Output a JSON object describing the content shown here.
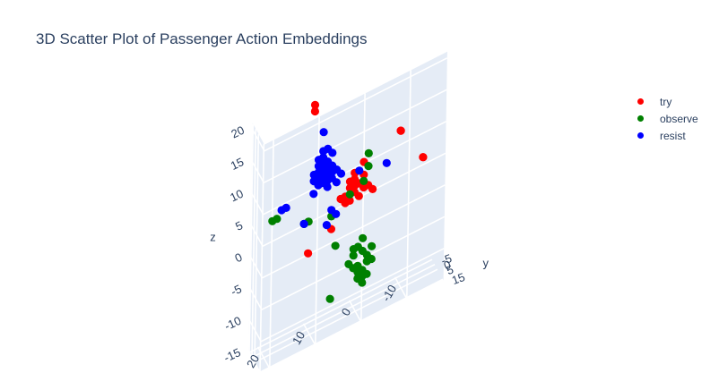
{
  "chart_data": {
    "type": "scatter",
    "title": "3D Scatter Plot of Passenger Action Embeddings",
    "axes": {
      "x": {
        "label": "",
        "ticks": [
          20,
          10,
          0,
          -10
        ],
        "range": [
          22,
          -18
        ]
      },
      "y": {
        "label": "y",
        "ticks": [
          -5,
          0,
          5,
          15
        ],
        "range": [
          -6,
          16
        ]
      },
      "z": {
        "label": "z",
        "ticks": [
          20,
          15,
          10,
          5,
          0,
          -5,
          -10,
          -15
        ],
        "range": [
          -15,
          21
        ]
      }
    },
    "legend_position": "top-right",
    "series": [
      {
        "name": "try",
        "color": "#ff0000",
        "points": [
          [
            9,
            0,
            20
          ],
          [
            9,
            0,
            19
          ],
          [
            0,
            0,
            5
          ],
          [
            0,
            0,
            4
          ],
          [
            1,
            0,
            4
          ],
          [
            -1,
            0,
            4
          ],
          [
            0,
            0,
            3
          ],
          [
            2,
            0,
            3
          ],
          [
            -2,
            0,
            3
          ],
          [
            1,
            0,
            2
          ],
          [
            -1,
            0,
            2
          ],
          [
            -3,
            0,
            3
          ],
          [
            3,
            0,
            3
          ],
          [
            0,
            0,
            6
          ],
          [
            -2,
            0,
            5
          ],
          [
            2,
            0,
            2
          ],
          [
            -4,
            0,
            2
          ],
          [
            1,
            0,
            5
          ],
          [
            -10,
            0,
            9
          ],
          [
            -10,
            0,
            9
          ],
          [
            -15,
            0,
            3
          ],
          [
            -15,
            0,
            3
          ],
          [
            10,
            0,
            -3
          ],
          [
            5,
            0,
            -1
          ],
          [
            3,
            0,
            3
          ],
          [
            -2,
            0,
            7
          ]
        ]
      },
      {
        "name": "observe",
        "color": "#008000",
        "points": [
          [
            18,
            0,
            5
          ],
          [
            17,
            0,
            5
          ],
          [
            11,
            0,
            2
          ],
          [
            10,
            0,
            2
          ],
          [
            6,
            0,
            9
          ],
          [
            -3,
            0,
            8
          ],
          [
            -3,
            0,
            6
          ],
          [
            -2,
            0,
            4
          ],
          [
            1,
            0,
            3
          ],
          [
            5,
            0,
            1
          ],
          [
            -1,
            0,
            -6
          ],
          [
            0,
            0,
            -7
          ],
          [
            -2,
            0,
            -7
          ],
          [
            1,
            0,
            -8
          ],
          [
            -3,
            0,
            -8
          ],
          [
            0,
            0,
            -9
          ],
          [
            -1,
            0,
            -10
          ],
          [
            -2,
            0,
            -10
          ],
          [
            -4,
            0,
            -9
          ],
          [
            -3,
            0,
            -11
          ],
          [
            -1,
            0,
            -11
          ],
          [
            -2,
            0,
            -12
          ],
          [
            0,
            0,
            -6
          ],
          [
            -4,
            0,
            -7
          ],
          [
            -2,
            0,
            -5
          ],
          [
            -1,
            0,
            -9
          ],
          [
            -3,
            0,
            -9
          ],
          [
            -2,
            0,
            -11
          ],
          [
            4,
            0,
            -4
          ],
          [
            5,
            0,
            -12
          ]
        ]
      },
      {
        "name": "resist",
        "color": "#0000ff",
        "points": [
          [
            7,
            0,
            15
          ],
          [
            7,
            0,
            12
          ],
          [
            7,
            0,
            11
          ],
          [
            6,
            0,
            12
          ],
          [
            8,
            0,
            11
          ],
          [
            6,
            0,
            10
          ],
          [
            7,
            0,
            10
          ],
          [
            5,
            0,
            11
          ],
          [
            8,
            0,
            10
          ],
          [
            6,
            0,
            9
          ],
          [
            7,
            0,
            9
          ],
          [
            5,
            0,
            9
          ],
          [
            8,
            0,
            9
          ],
          [
            9,
            0,
            9
          ],
          [
            5,
            0,
            8
          ],
          [
            6,
            0,
            8
          ],
          [
            7,
            0,
            8
          ],
          [
            4,
            0,
            8
          ],
          [
            8,
            0,
            8
          ],
          [
            9,
            0,
            8
          ],
          [
            6,
            0,
            7
          ],
          [
            7,
            0,
            7
          ],
          [
            5,
            0,
            7
          ],
          [
            3,
            0,
            7
          ],
          [
            8,
            0,
            7
          ],
          [
            4,
            0,
            6
          ],
          [
            6,
            0,
            6
          ],
          [
            9,
            0,
            6
          ],
          [
            16,
            0,
            6
          ],
          [
            15,
            0,
            6
          ],
          [
            11,
            0,
            2
          ],
          [
            5,
            0,
            2
          ],
          [
            6,
            0,
            0
          ],
          [
            4,
            0,
            1
          ],
          [
            -1,
            0,
            6
          ],
          [
            -7,
            0,
            5
          ]
        ]
      }
    ]
  }
}
